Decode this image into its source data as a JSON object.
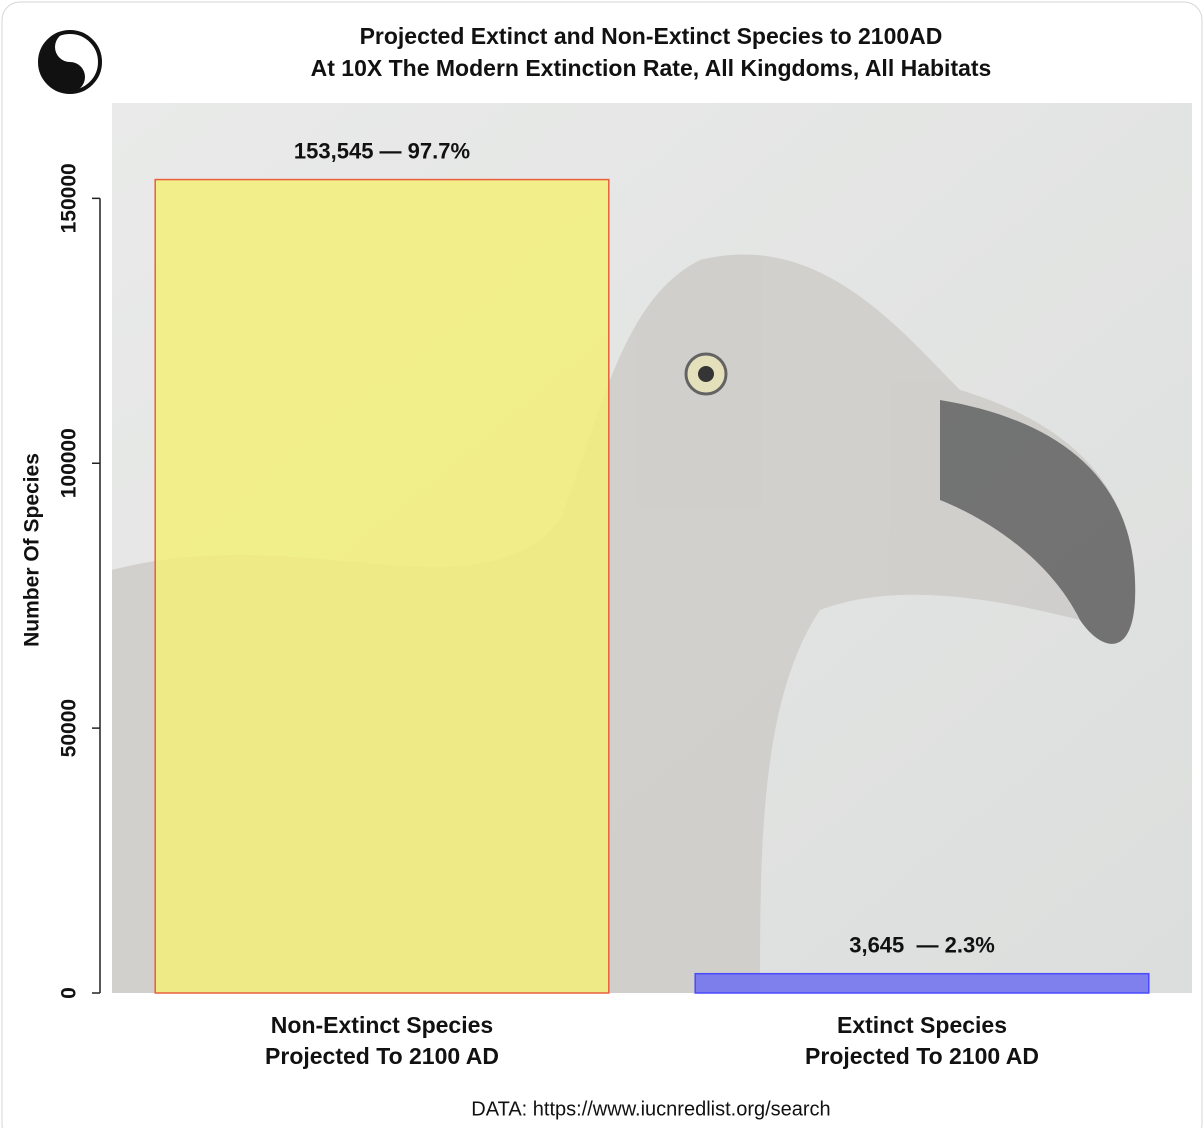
{
  "chart_data": {
    "type": "bar",
    "title": "Projected Extinct and Non-Extinct Species to 2100AD",
    "subtitle": "At 10X The Modern Extinction Rate, All Kingdoms, All Habitats",
    "y_label": "Number Of Species",
    "categories": [
      [
        "Non-Extinct Species",
        "Projected To 2100 AD"
      ],
      [
        "Extinct Species",
        "Projected To 2100 AD"
      ]
    ],
    "values": [
      153545,
      3645
    ],
    "value_labels": [
      "153,545 — 97.7%",
      "3,645  — 2.3%"
    ],
    "colors": [
      "#f3f07a",
      "#6e6ef0"
    ],
    "edge_colors": [
      "#e8603c",
      "#4a4aff"
    ],
    "ylim": [
      0,
      168000
    ],
    "yticks": [
      0,
      50000,
      100000,
      150000
    ],
    "source": "DATA: https://www.iucnredlist.org/search"
  }
}
